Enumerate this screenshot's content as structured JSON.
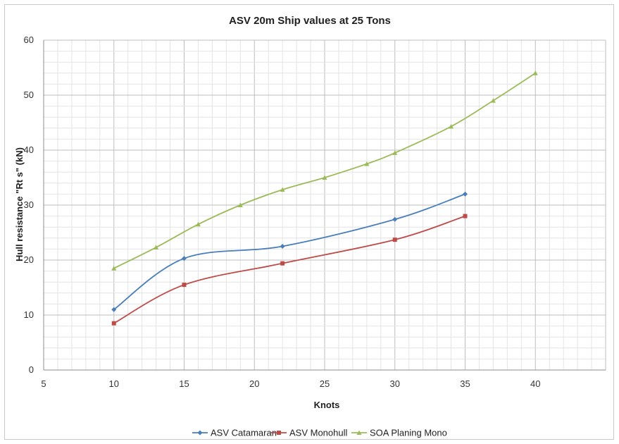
{
  "chart_data": {
    "type": "line",
    "title": "ASV 20m Ship values at 25 Tons",
    "xlabel": "Knots",
    "ylabel": "Hull resistance \"Rt s\" (kN)",
    "xlim": [
      5,
      45
    ],
    "ylim": [
      0,
      60
    ],
    "x_ticks": [
      5,
      10,
      15,
      20,
      25,
      30,
      35,
      40
    ],
    "y_ticks": [
      0,
      10,
      20,
      30,
      40,
      50,
      60
    ],
    "grid": true,
    "legend_position": "bottom",
    "series": [
      {
        "name": "ASV Catamaran",
        "color": "#4a7ebb",
        "marker": "diamond",
        "points": [
          [
            10,
            11
          ],
          [
            15,
            20.3
          ],
          [
            22,
            22.5
          ],
          [
            30,
            27.4
          ],
          [
            35,
            32
          ]
        ]
      },
      {
        "name": "ASV Monohull",
        "color": "#be4b48",
        "marker": "square",
        "points": [
          [
            10,
            8.5
          ],
          [
            15,
            15.5
          ],
          [
            22,
            19.4
          ],
          [
            30,
            23.7
          ],
          [
            35,
            28
          ]
        ]
      },
      {
        "name": "SOA Planing Mono",
        "color": "#9bbb59",
        "marker": "triangle",
        "points": [
          [
            10,
            18.5
          ],
          [
            13,
            22.3
          ],
          [
            16,
            26.5
          ],
          [
            19,
            30
          ],
          [
            22,
            32.8
          ],
          [
            25,
            35
          ],
          [
            28,
            37.5
          ],
          [
            30,
            39.5
          ],
          [
            34,
            44.3
          ],
          [
            37,
            49
          ],
          [
            40,
            54
          ]
        ]
      }
    ]
  }
}
